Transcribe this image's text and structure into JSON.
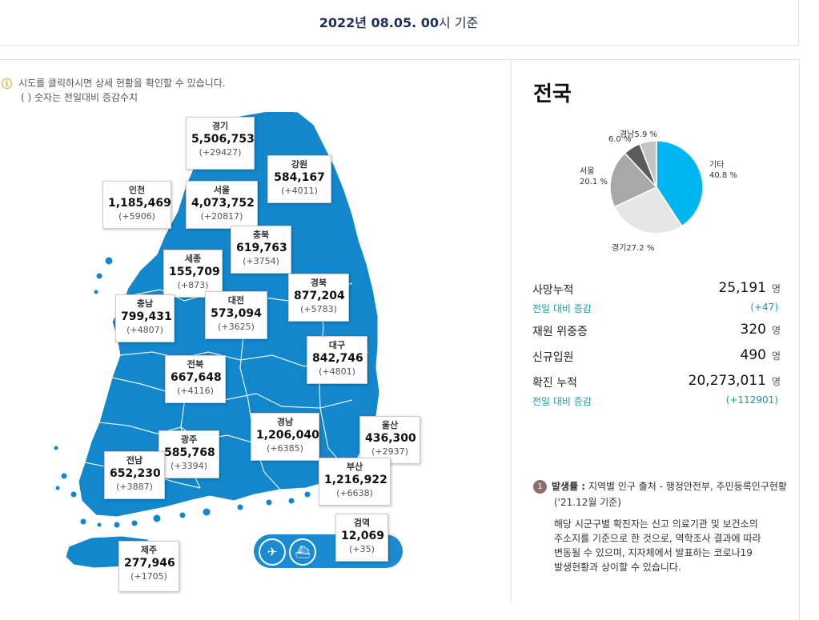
{
  "header": {
    "date_bold": "2022년 08.05. 00",
    "date_suffix": "시 기준"
  },
  "notice": {
    "icon": "info-icon",
    "line1": "시도를 클릭하시면 상세 현황을 확인할 수 있습니다.",
    "line2": "( ) 숫자는 전일대비 증감수치"
  },
  "regions": {
    "gyeonggi": {
      "name": "경기",
      "total": "5,506,753",
      "delta": "(+29427)"
    },
    "gangwon": {
      "name": "강원",
      "total": "584,167",
      "delta": "(+4011)"
    },
    "incheon": {
      "name": "인천",
      "total": "1,185,469",
      "delta": "(+5906)"
    },
    "seoul": {
      "name": "서울",
      "total": "4,073,752",
      "delta": "(+20817)"
    },
    "chungbuk": {
      "name": "충북",
      "total": "619,763",
      "delta": "(+3754)"
    },
    "sejong": {
      "name": "세종",
      "total": "155,709",
      "delta": "(+873)"
    },
    "chungnam": {
      "name": "충남",
      "total": "799,431",
      "delta": "(+4807)"
    },
    "daejeon": {
      "name": "대전",
      "total": "573,094",
      "delta": "(+3625)"
    },
    "gyeongbuk": {
      "name": "경북",
      "total": "877,204",
      "delta": "(+5783)"
    },
    "daegu": {
      "name": "대구",
      "total": "842,746",
      "delta": "(+4801)"
    },
    "jeonbuk": {
      "name": "전북",
      "total": "667,648",
      "delta": "(+4116)"
    },
    "gyeongnam": {
      "name": "경남",
      "total": "1,206,040",
      "delta": "(+6385)"
    },
    "ulsan": {
      "name": "울산",
      "total": "436,300",
      "delta": "(+2937)"
    },
    "gwangju": {
      "name": "광주",
      "total": "585,768",
      "delta": "(+3394)"
    },
    "jeonnam": {
      "name": "전남",
      "total": "652,230",
      "delta": "(+3887)"
    },
    "busan": {
      "name": "부산",
      "total": "1,216,922",
      "delta": "(+6638)"
    },
    "quarantine": {
      "name": "검역",
      "total": "12,069",
      "delta": "(+35)"
    },
    "jeju": {
      "name": "제주",
      "total": "277,946",
      "delta": "(+1705)"
    }
  },
  "transport": {
    "plane_icon": "airplane-icon",
    "ship_icon": "ship-icon"
  },
  "national": {
    "title": "전국",
    "chart_data": {
      "type": "pie",
      "slices": [
        {
          "name": "기타",
          "value": 40.8,
          "label": "40.8 %",
          "color": "#00b6f1"
        },
        {
          "name": "경기",
          "value": 27.2,
          "label": "27.2 %",
          "color": "#e6e6e6"
        },
        {
          "name": "서울",
          "value": 20.1,
          "label": "20.1 %",
          "color": "#a8a8a8"
        },
        {
          "name": "",
          "value": 6.0,
          "label": "6.0 %",
          "color": "#5b5b5b"
        },
        {
          "name": "경남",
          "value": 5.9,
          "label": "5.9 %",
          "color": "#c4c4c4"
        }
      ]
    },
    "stats": {
      "deaths_label": "사망누적",
      "deaths_value": "25,191",
      "deaths_unit": "명",
      "deaths_change_label": "전일 대비 증감",
      "deaths_change_value": "(+47)",
      "critical_label": "재원 위중증",
      "critical_value": "320",
      "critical_unit": "명",
      "admit_label": "신규입원",
      "admit_value": "490",
      "admit_unit": "명",
      "cases_label": "확진 누적",
      "cases_value": "20,273,011",
      "cases_unit": "명",
      "cases_change_label": "전일 대비 증감",
      "cases_change_value": "(+112901)"
    }
  },
  "footnote": {
    "num": "1",
    "title": "발생률 :",
    "text": "지역별 인구 출처 - 행정안전부, 주민등록인구현황",
    "text2": "('21.12월 기준)",
    "note_l1": "해당 시군구별 확진자는 신고 의료기관 및 보건소의",
    "note_l2": "주소지를 기준으로 한 것으로, 역학조사 결과에 따라",
    "note_l3": "변동될 수 있으며, 지자체에서 발표하는 코로나19",
    "note_l4": "발생현황과 상이할 수 있습니다."
  }
}
